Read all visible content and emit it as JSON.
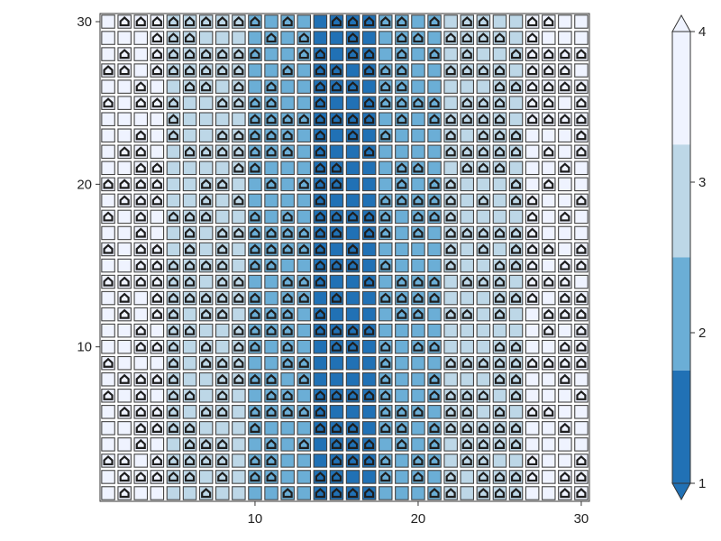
{
  "chart_data": {
    "type": "heatmap",
    "title": "",
    "xlabel": "",
    "ylabel": "",
    "x": [
      1,
      2,
      3,
      4,
      5,
      6,
      7,
      8,
      9,
      10,
      11,
      12,
      13,
      14,
      15,
      16,
      17,
      18,
      19,
      20,
      21,
      22,
      23,
      24,
      25,
      26,
      27,
      28,
      29,
      30
    ],
    "y": [
      1,
      2,
      3,
      4,
      5,
      6,
      7,
      8,
      9,
      10,
      11,
      12,
      13,
      14,
      15,
      16,
      17,
      18,
      19,
      20,
      21,
      22,
      23,
      24,
      25,
      26,
      27,
      28,
      29,
      30
    ],
    "xlim": [
      0.5,
      30.5
    ],
    "ylim": [
      0.5,
      30.5
    ],
    "xticks": [
      10,
      20,
      30
    ],
    "yticks": [
      10,
      20,
      30
    ],
    "grid": false,
    "cell_value_rule": "value by column x: x 14-17 -> 1 (dark blue); x 10-13 and 18-21 -> 2; x 5-9 and 22-26 -> 3; x 1-4 and 27-30 -> 4 (near white)",
    "column_values": [
      4,
      4,
      4,
      4,
      3,
      3,
      3,
      3,
      3,
      2,
      2,
      2,
      2,
      1,
      1,
      1,
      1,
      2,
      2,
      2,
      2,
      3,
      3,
      3,
      3,
      3,
      4,
      4,
      4,
      4
    ],
    "marker_overlay": "house-shaped outline marker drawn on many cells; marker pattern is irregular",
    "colorbar": {
      "ticks": [
        1,
        2,
        3,
        4
      ],
      "range": [
        1,
        4
      ],
      "levels": [
        {
          "from": 1.0,
          "to": 1.75,
          "color": "#2171b5"
        },
        {
          "from": 1.75,
          "to": 2.5,
          "color": "#6baed6"
        },
        {
          "from": 2.5,
          "to": 3.25,
          "color": "#bdd7e7"
        },
        {
          "from": 3.25,
          "to": 4.0,
          "color": "#eff3ff"
        }
      ],
      "extend": "both"
    }
  }
}
